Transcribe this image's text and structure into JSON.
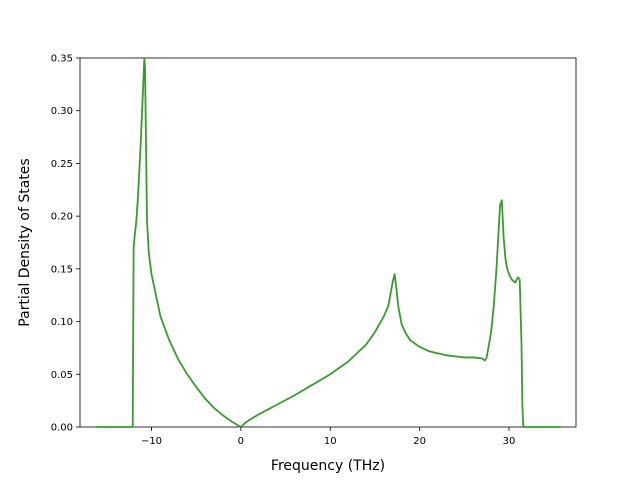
{
  "chart_data": {
    "type": "line",
    "title": "",
    "xlabel": "Frequency (THz)",
    "ylabel": "Partial Density of States",
    "xlim": [
      -18,
      37.5
    ],
    "ylim": [
      0,
      0.35
    ],
    "grid": false,
    "xticks": [
      -10,
      0,
      10,
      20,
      30
    ],
    "xtick_labels": [
      "−10",
      "0",
      "10",
      "20",
      "30"
    ],
    "yticks": [
      0,
      0.05,
      0.1,
      0.15,
      0.2,
      0.25,
      0.3,
      0.35
    ],
    "ytick_labels": [
      "0.00",
      "0.05",
      "0.10",
      "0.15",
      "0.20",
      "0.25",
      "0.30",
      "0.35"
    ],
    "series": [
      {
        "color": "#3a9a2e",
        "x": [
          -16.2,
          -12.1,
          -12.0,
          -11.9,
          -11.7,
          -11.5,
          -11.2,
          -11.0,
          -10.9,
          -10.8,
          -10.72,
          -10.6,
          -10.5,
          -10.3,
          -10.0,
          -9.5,
          -9.0,
          -8.0,
          -7.0,
          -6.0,
          -5.0,
          -4.0,
          -3.0,
          -2.0,
          -1.0,
          0.0,
          0.5,
          1.0,
          2.0,
          4.0,
          6.0,
          8.0,
          10.0,
          12.0,
          14.0,
          15.0,
          16.0,
          16.5,
          17.0,
          17.2,
          17.4,
          17.6,
          18.0,
          18.5,
          19.0,
          20.0,
          21.0,
          22.0,
          23.0,
          24.0,
          25.0,
          26.0,
          27.0,
          27.3,
          27.5,
          27.8,
          28.0,
          28.3,
          28.6,
          28.8,
          29.0,
          29.2,
          29.4,
          29.6,
          29.8,
          30.0,
          30.3,
          30.7,
          31.0,
          31.2,
          31.4,
          31.5,
          31.6,
          35.8
        ],
        "y": [
          0.0,
          0.0,
          0.17,
          0.18,
          0.195,
          0.22,
          0.27,
          0.31,
          0.33,
          0.35,
          0.34,
          0.26,
          0.195,
          0.165,
          0.145,
          0.125,
          0.105,
          0.082,
          0.064,
          0.05,
          0.038,
          0.027,
          0.018,
          0.011,
          0.005,
          0.0,
          0.004,
          0.007,
          0.012,
          0.021,
          0.03,
          0.04,
          0.05,
          0.062,
          0.078,
          0.09,
          0.105,
          0.115,
          0.138,
          0.145,
          0.132,
          0.115,
          0.097,
          0.088,
          0.082,
          0.076,
          0.072,
          0.07,
          0.068,
          0.067,
          0.066,
          0.066,
          0.065,
          0.063,
          0.066,
          0.08,
          0.09,
          0.115,
          0.15,
          0.18,
          0.21,
          0.215,
          0.18,
          0.16,
          0.15,
          0.145,
          0.14,
          0.137,
          0.142,
          0.14,
          0.08,
          0.02,
          0.0,
          0.0
        ]
      }
    ]
  }
}
